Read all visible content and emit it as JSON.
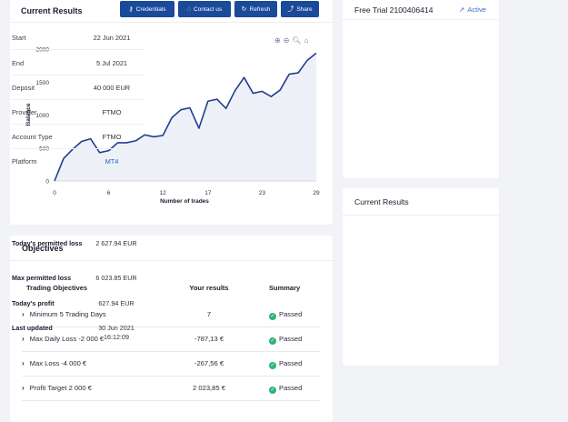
{
  "results_panel": {
    "title": "Current Results",
    "buttons": [
      {
        "label": "Credentials",
        "icon": "key-icon"
      },
      {
        "label": "Contact us",
        "icon": "chat-icon"
      },
      {
        "label": "Refresh",
        "icon": "refresh-icon"
      },
      {
        "label": "Share",
        "icon": "share-icon"
      }
    ]
  },
  "chart_data": {
    "type": "area",
    "xlabel": "Number of trades",
    "ylabel": "Balance",
    "xlim": [
      0,
      29
    ],
    "ylim": [
      0,
      2000
    ],
    "x_ticks": [
      0,
      6,
      12,
      17,
      23,
      29
    ],
    "y_ticks": [
      0,
      500,
      1000,
      1500,
      2000
    ],
    "x": [
      0,
      1,
      2,
      3,
      4,
      5,
      6,
      7,
      8,
      9,
      10,
      11,
      12,
      13,
      14,
      15,
      16,
      17,
      18,
      19,
      20,
      21,
      22,
      23,
      24,
      25,
      26,
      27,
      28,
      29
    ],
    "series": [
      {
        "values": [
          0,
          340,
          480,
          600,
          640,
          430,
          460,
          580,
          580,
          610,
          700,
          670,
          690,
          960,
          1080,
          1110,
          800,
          1210,
          1240,
          1100,
          1370,
          1570,
          1330,
          1360,
          1280,
          1380,
          1620,
          1640,
          1830,
          1940
        ]
      }
    ],
    "line_color": "#1f3f8f",
    "fill_color": "#eef0f8",
    "grid": false
  },
  "objectives": {
    "title": "Objectives",
    "headers": [
      "Trading Objectives",
      "Your results",
      "Summary"
    ],
    "rows": [
      {
        "objective": "Minimum 5 Trading Days",
        "result": "7",
        "summary": "Passed"
      },
      {
        "objective": "Max Daily Loss -2 000 €",
        "result": "-787,13 €",
        "summary": "Passed"
      },
      {
        "objective": "Max Loss -4 000 €",
        "result": "-267,56 €",
        "summary": "Passed"
      },
      {
        "objective": "Profit Target 2 000 €",
        "result": "2 023,85 €",
        "summary": "Passed"
      }
    ]
  },
  "account": {
    "title": "Free Trial 2100406414",
    "status": "Active",
    "rows": [
      {
        "label": "Start",
        "value": "22 Jun 2021"
      },
      {
        "label": "End",
        "value": "5 Jul 2021"
      },
      {
        "label": "Deposit",
        "value": "40 000 EUR"
      },
      {
        "label": "Provider",
        "value": "FTMO"
      },
      {
        "label": "Account Type",
        "value": "FTMO"
      },
      {
        "label": "Platform",
        "value": "MT4"
      }
    ]
  },
  "summary": {
    "title": "Current Results",
    "rows": [
      {
        "label": "Today's permitted loss",
        "value": "2 627.94 EUR"
      },
      {
        "label": "Max permitted loss",
        "value": "6 023.85 EUR"
      },
      {
        "label": "Today's profit",
        "value": "627.94 EUR"
      },
      {
        "label": "Last updated",
        "value": "30 Jun 2021 16:12:09"
      }
    ]
  }
}
